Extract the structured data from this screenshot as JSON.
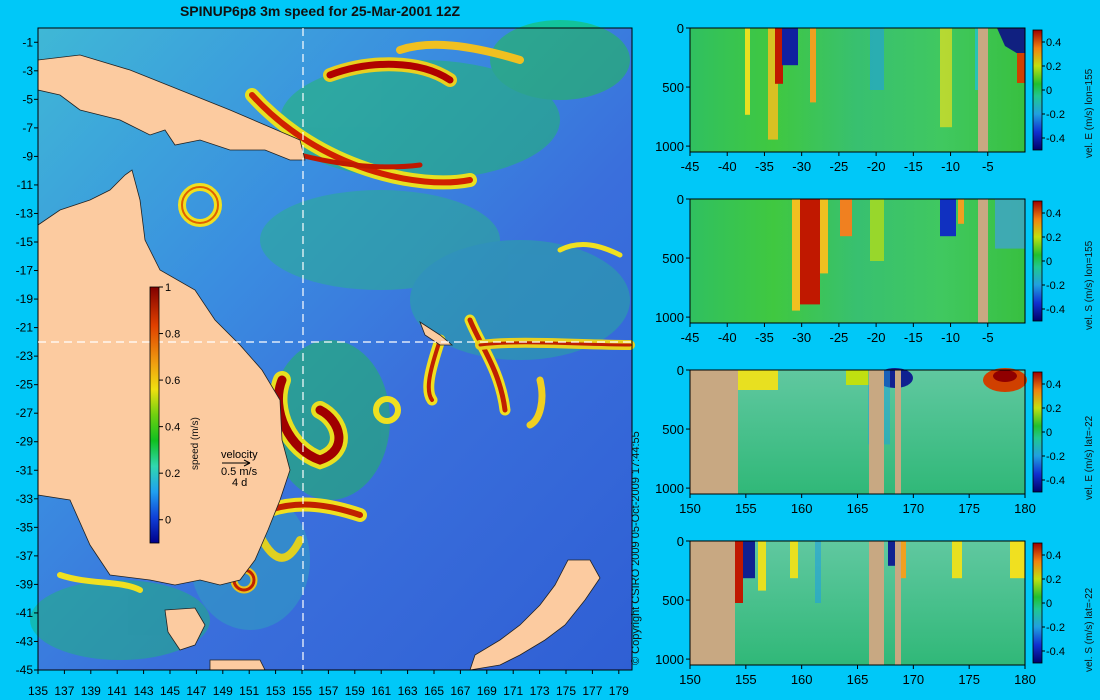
{
  "title": "SPINUP6p8 3m speed for 25-Mar-2001 12Z",
  "copyright": "© Copyright CSIRO 2009   05-Oct-2009 17:44:55",
  "map": {
    "lon_ticks": [
      "135",
      "137",
      "139",
      "141",
      "143",
      "145",
      "147",
      "149",
      "151",
      "153",
      "155",
      "157",
      "159",
      "161",
      "163",
      "165",
      "167",
      "169",
      "171",
      "173",
      "175",
      "177",
      "179"
    ],
    "lat_ticks": [
      "-1",
      "-3",
      "-5",
      "-7",
      "-9",
      "-11",
      "-13",
      "-15",
      "-17",
      "-19",
      "-21",
      "-23",
      "-25",
      "-27",
      "-29",
      "-31",
      "-33",
      "-35",
      "-37",
      "-39",
      "-41",
      "-43",
      "-45"
    ],
    "lon_range": [
      135,
      180
    ],
    "lat_range": [
      -45,
      0
    ],
    "section_lon": 155,
    "section_lat": -22,
    "colorbar": {
      "label": "speed (m/s)",
      "ticks": [
        "1",
        "0.8",
        "0.6",
        "0.4",
        "0.2",
        "0"
      ],
      "range": [
        -0.1,
        1
      ]
    },
    "velocity_legend": {
      "title": "velocity",
      "scale": "0.5 m/s",
      "interval": "4 d"
    },
    "colors": {
      "land": "#fccba0",
      "ocean_low": "#2e5fd8",
      "ocean_mid": "#0cc83a",
      "ocean_high": "#c41a00"
    }
  },
  "panels": [
    {
      "label": "vel. E (m/s) lon=155",
      "x_ticks": [
        "-45",
        "-40",
        "-35",
        "-30",
        "-25",
        "-20",
        "-15",
        "-10",
        "-5"
      ],
      "y_ticks": [
        "0",
        "500",
        "1000"
      ],
      "cb_ticks": [
        "0.4",
        "0.2",
        "0",
        "-0.2",
        "-0.4"
      ]
    },
    {
      "label": "vel. S (m/s) lon=155",
      "x_ticks": [
        "-45",
        "-40",
        "-35",
        "-30",
        "-25",
        "-20",
        "-15",
        "-10",
        "-5"
      ],
      "y_ticks": [
        "0",
        "500",
        "1000"
      ],
      "cb_ticks": [
        "0.4",
        "0.2",
        "0",
        "-0.2",
        "-0.4"
      ]
    },
    {
      "label": "vel. E (m/s) lat=-22",
      "x_ticks": [
        "150",
        "155",
        "160",
        "165",
        "170",
        "175",
        "180"
      ],
      "y_ticks": [
        "0",
        "500",
        "1000"
      ],
      "cb_ticks": [
        "0.4",
        "0.2",
        "0",
        "-0.2",
        "-0.4"
      ]
    },
    {
      "label": "vel. S (m/s) lat=-22",
      "x_ticks": [
        "150",
        "155",
        "160",
        "165",
        "170",
        "175",
        "180"
      ],
      "y_ticks": [
        "0",
        "500",
        "1000"
      ],
      "cb_ticks": [
        "0.4",
        "0.2",
        "0",
        "-0.2",
        "-0.4"
      ]
    }
  ]
}
